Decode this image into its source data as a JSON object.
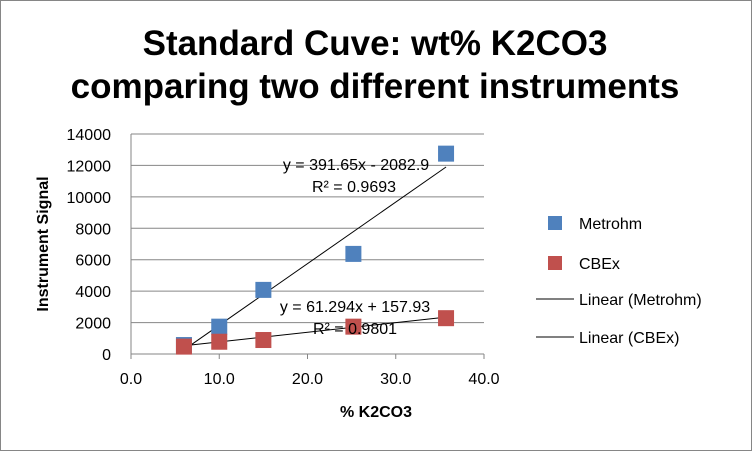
{
  "chart_data": {
    "type": "scatter",
    "title": [
      "Standard Cuve:  wt% K2CO3",
      "comparing two different instruments"
    ],
    "xlabel": "% K2CO3",
    "ylabel": "Instrument Signal",
    "xlim": [
      0,
      40
    ],
    "ylim": [
      0,
      14000
    ],
    "xticks": [
      0,
      10,
      20,
      30,
      40
    ],
    "xtick_labels": [
      "0.0",
      "10.0",
      "20.0",
      "30.0",
      "40.0"
    ],
    "yticks": [
      0,
      2000,
      4000,
      6000,
      8000,
      10000,
      12000,
      14000
    ],
    "ytick_labels": [
      "0",
      "2000",
      "4000",
      "6000",
      "8000",
      "10000",
      "12000",
      "14000"
    ],
    "grid": "horizontal",
    "legend_position": "right",
    "series": [
      {
        "name": "Metrohm",
        "color": "#4f81bd",
        "x": [
          6,
          10,
          15,
          25.2,
          35.7
        ],
        "y": [
          570,
          1740,
          4080,
          6370,
          12750
        ]
      },
      {
        "name": "CBEx",
        "color": "#c0504d",
        "x": [
          6,
          10,
          15,
          25.2,
          35.7
        ],
        "y": [
          470,
          780,
          890,
          1740,
          2280
        ]
      }
    ],
    "trendlines": [
      {
        "name": "Linear (Metrohm)",
        "slope": 391.65,
        "intercept": -2082.9,
        "equation": "y = 391.65x - 2082.9",
        "r2": "R² = 0.9693"
      },
      {
        "name": "Linear (CBEx)",
        "slope": 61.294,
        "intercept": 157.93,
        "equation": "y = 61.294x + 157.93",
        "r2": "R² = 0.9801"
      }
    ]
  }
}
